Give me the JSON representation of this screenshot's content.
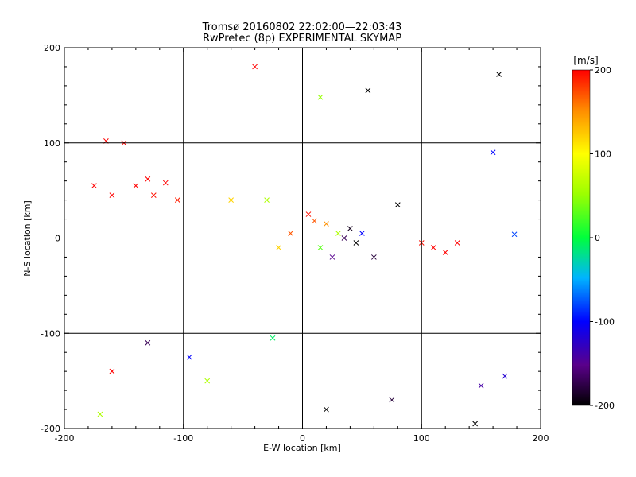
{
  "chart_data": [
    {
      "type": "scatter",
      "title": "Tromsø 20160802 22:02:00—22:03:43",
      "subtitle": "RwPretec (8p) EXPERIMENTAL SKYMAP",
      "xlabel": "E-W location [km]",
      "ylabel": "N-S location [km]",
      "xlim": [
        -200,
        200
      ],
      "ylim": [
        -200,
        200
      ],
      "x_ticks": [
        "-200",
        "-100",
        "0",
        "100",
        "200"
      ],
      "y_ticks": [
        "-200",
        "-100",
        "0",
        "100",
        "200"
      ],
      "grid": true,
      "markers": [
        "x",
        "dot"
      ],
      "series": [
        {
          "values": [
            {
              "x": -115,
              "y": 58,
              "v": 200
            },
            {
              "x": -130,
              "y": 62,
              "v": 200
            },
            {
              "x": -125,
              "y": 45,
              "v": 195
            },
            {
              "x": -105,
              "y": 40,
              "v": 190
            },
            {
              "x": -140,
              "y": 55,
              "v": 200
            },
            {
              "x": -160,
              "y": 45,
              "v": 200
            },
            {
              "x": -175,
              "y": 55,
              "v": 200
            },
            {
              "x": -150,
              "y": 100,
              "v": 200
            },
            {
              "x": -165,
              "y": 102,
              "v": 200
            },
            {
              "x": -40,
              "y": 180,
              "v": 200
            },
            {
              "x": 5,
              "y": 25,
              "v": 195
            },
            {
              "x": 10,
              "y": 18,
              "v": 170
            },
            {
              "x": 20,
              "y": 15,
              "v": 150
            },
            {
              "x": 30,
              "y": 5,
              "v": 60
            },
            {
              "x": 35,
              "y": 0,
              "v": -170
            },
            {
              "x": 40,
              "y": 10,
              "v": -190
            },
            {
              "x": 45,
              "y": -5,
              "v": -200
            },
            {
              "x": 25,
              "y": -20,
              "v": -150
            },
            {
              "x": 50,
              "y": 5,
              "v": -100
            },
            {
              "x": 60,
              "y": -20,
              "v": -180
            },
            {
              "x": 15,
              "y": -10,
              "v": 30
            },
            {
              "x": -10,
              "y": 5,
              "v": 170
            },
            {
              "x": -20,
              "y": -10,
              "v": 120
            },
            {
              "x": 110,
              "y": -10,
              "v": 200
            },
            {
              "x": 120,
              "y": -15,
              "v": 200
            },
            {
              "x": 130,
              "y": -5,
              "v": 200
            },
            {
              "x": 100,
              "y": -5,
              "v": 195
            },
            {
              "x": 15,
              "y": 148,
              "v": 50
            },
            {
              "x": 55,
              "y": 155,
              "v": -200
            },
            {
              "x": 165,
              "y": 172,
              "v": -200
            },
            {
              "x": 160,
              "y": 90,
              "v": -100
            },
            {
              "x": 178,
              "y": 4,
              "v": -80
            },
            {
              "x": -25,
              "y": -105,
              "v": -10
            },
            {
              "x": -130,
              "y": -110,
              "v": -170
            },
            {
              "x": -160,
              "y": -140,
              "v": 200
            },
            {
              "x": -170,
              "y": -185,
              "v": 60
            },
            {
              "x": -95,
              "y": -125,
              "v": -100
            },
            {
              "x": -80,
              "y": -150,
              "v": 60
            },
            {
              "x": 20,
              "y": -180,
              "v": -200
            },
            {
              "x": 150,
              "y": -155,
              "v": -140
            },
            {
              "x": 170,
              "y": -145,
              "v": -120
            },
            {
              "x": 145,
              "y": -195,
              "v": -200
            },
            {
              "x": 75,
              "y": -170,
              "v": -180
            },
            {
              "x": -30,
              "y": 40,
              "v": 60
            },
            {
              "x": -60,
              "y": 40,
              "v": 120
            },
            {
              "x": 80,
              "y": 35,
              "v": -200
            }
          ]
        }
      ],
      "colorbar": {
        "label": "[m/s]",
        "min": -200,
        "max": 200,
        "tick_labels": [
          "-200",
          "-100",
          "0",
          "100",
          "200"
        ],
        "colormap": "rainbow (black-purple-blue-cyan-green-yellow-red)"
      }
    }
  ]
}
